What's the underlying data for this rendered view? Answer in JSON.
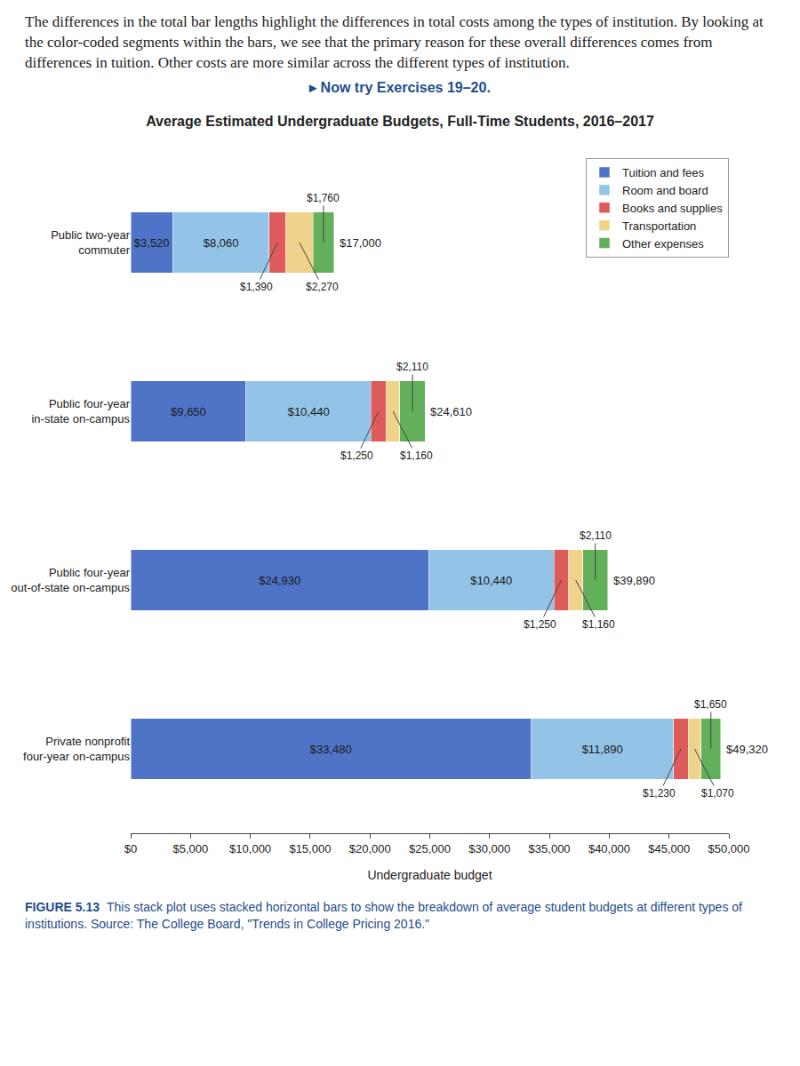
{
  "intro": "The differences in the total bar lengths highlight the differences in total costs among the types of institution. By looking at the color-coded segments within the bars, we see that the primary reason for these overall differences comes from differences in tuition. Other costs are more similar across the different types of institution.",
  "exercise_link": "▸ Now try Exercises 19–20.",
  "caption_label": "FIGURE 5.13",
  "caption": "This stack plot uses stacked horizontal bars to show the breakdown of average student budgets at different types of institutions. Source: The College Board, \"Trends in College Pricing 2016.\"",
  "chart_data": {
    "type": "bar",
    "orientation": "horizontal",
    "stacked": true,
    "title": "Average Estimated Undergraduate Budgets, Full-Time Students, 2016–2017",
    "x_label": "Undergraduate budget",
    "categories": [
      "Public two-year\ncommuter",
      "Public four-year\nin-state on-campus",
      "Public four-year\nout-of-state on-campus",
      "Private nonprofit\nfour-year on-campus"
    ],
    "series": [
      {
        "name": "Tuition and fees",
        "color": "#4f73c6",
        "values": [
          3520,
          9650,
          24930,
          33480
        ],
        "value_labels": [
          "$3,520",
          "$9,650",
          "$24,930",
          "$33,480"
        ]
      },
      {
        "name": "Room and board",
        "color": "#93c4e8",
        "values": [
          8060,
          10440,
          10440,
          11890
        ],
        "value_labels": [
          "$8,060",
          "$10,440",
          "$10,440",
          "$11,890"
        ]
      },
      {
        "name": "Books and supplies",
        "color": "#de5b5b",
        "values": [
          1390,
          1250,
          1250,
          1230
        ],
        "value_labels": [
          "$1,390",
          "$1,250",
          "$1,250",
          "$1,230"
        ]
      },
      {
        "name": "Transportation",
        "color": "#efd38a",
        "values": [
          2270,
          1160,
          1160,
          1070
        ],
        "value_labels": [
          "$2,270",
          "$1,160",
          "$1,160",
          "$1,070"
        ]
      },
      {
        "name": "Other expenses",
        "color": "#62b05a",
        "values": [
          1760,
          2110,
          2110,
          1650
        ],
        "value_labels": [
          "$1,760",
          "$2,110",
          "$2,110",
          "$1,650"
        ]
      }
    ],
    "annotations": [
      {
        "category": 0,
        "x": 17000,
        "text": "$17,000"
      },
      {
        "category": 1,
        "x": 24610,
        "text": "$24,610"
      },
      {
        "category": 2,
        "x": 39890,
        "text": "$39,890"
      },
      {
        "category": 3,
        "x": 49320,
        "text": "$49,320"
      }
    ],
    "xlim": [
      0,
      50000
    ],
    "xticks": [
      {
        "value": 0,
        "label": "$0"
      },
      {
        "value": 5000,
        "label": "$5,000"
      },
      {
        "value": 10000,
        "label": "$10,000"
      },
      {
        "value": 15000,
        "label": "$15,000"
      },
      {
        "value": 20000,
        "label": "$20,000"
      },
      {
        "value": 25000,
        "label": "$25,000"
      },
      {
        "value": 30000,
        "label": "$30,000"
      },
      {
        "value": 35000,
        "label": "$35,000"
      },
      {
        "value": 40000,
        "label": "$40,000"
      },
      {
        "value": 45000,
        "label": "$45,000"
      },
      {
        "value": 50000,
        "label": "$50,000"
      }
    ],
    "grid": false,
    "legend": "top right",
    "data_labels": true
  }
}
